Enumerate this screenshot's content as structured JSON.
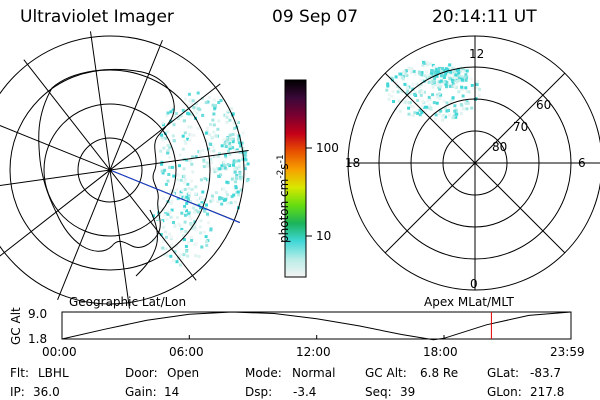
{
  "header": {
    "instrument": "Ultraviolet Imager",
    "date": "09 Sep 07",
    "time": "20:14:11 UT"
  },
  "left_panel": {
    "caption": "Geographic Lat/Lon"
  },
  "right_panel": {
    "caption": "Apex MLat/MLT",
    "mlt_labels": {
      "top": "12",
      "right": "6",
      "bottom": "0",
      "left": "18"
    },
    "lat_labels": [
      "60",
      "70",
      "80"
    ]
  },
  "colorbar": {
    "unit_text": "photon cm",
    "unit_exp1": "-2",
    "unit_s": "s",
    "unit_exp2": "-1",
    "ticks": [
      "100",
      "10"
    ],
    "scale": "log",
    "colors": [
      "#f4f4f4",
      "#b8ece6",
      "#3fd7d7",
      "#1bb35a",
      "#66dd10",
      "#d8e800",
      "#f7a000",
      "#e85200",
      "#c40018",
      "#7a0030",
      "#3a0838",
      "#000000"
    ]
  },
  "altitude_plot": {
    "ylabel": "GC Alt",
    "yticks": [
      "9.0",
      "1.8"
    ],
    "xticks": [
      "00:00",
      "06:00",
      "12:00",
      "18:00",
      "23:59"
    ],
    "current_time_marker": "20:14",
    "marker_color": "#e00000"
  },
  "chart_data": {
    "type": "line",
    "x": [
      "00:00",
      "02:00",
      "04:00",
      "06:00",
      "08:00",
      "10:00",
      "12:00",
      "14:00",
      "16:00",
      "17:30",
      "18:00",
      "20:00",
      "22:00",
      "23:59"
    ],
    "series": [
      {
        "values": [
          1.8,
          4.4,
          6.8,
          8.4,
          9.0,
          8.6,
          7.2,
          5.3,
          3.0,
          1.6,
          2.0,
          5.6,
          8.1,
          9.0
        ]
      }
    ],
    "ylim": [
      1.8,
      9.0
    ],
    "ylabel": "GC Alt"
  },
  "info": {
    "row1": {
      "filter_label": "Flt:",
      "filter_value": "LBHL",
      "door_label": "Door:",
      "door_value": "Open",
      "mode_label": "Mode:",
      "mode_value": "Normal",
      "gcalt_label": "GC Alt:",
      "gcalt_value": "6.8 Re",
      "glat_label": "GLat:",
      "glat_value": "-83.7"
    },
    "row2": {
      "ip_label": "IP:",
      "ip_value": "36.0",
      "gain_label": "Gain:",
      "gain_value": "14",
      "dsp_label": "Dsp:",
      "dsp_value": "-3.4",
      "seq_label": "Seq:",
      "seq_value": "39",
      "glon_label": "GLon:",
      "glon_value": "217.8"
    }
  }
}
